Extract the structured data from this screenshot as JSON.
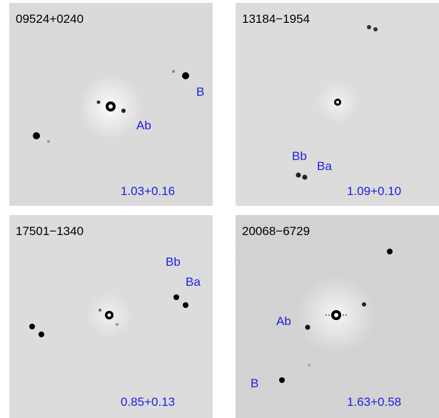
{
  "panels": [
    {
      "title": "09524+0240",
      "labels": [
        "B",
        "Ab"
      ],
      "value": "1.03+0.16"
    },
    {
      "title": "13184−1954",
      "labels": [
        "Bb",
        "Ba"
      ],
      "value": "1.09+0.10"
    },
    {
      "title": "17501−1340",
      "labels": [
        "Bb",
        "Ba"
      ],
      "value": "0.85+0.13"
    },
    {
      "title": "20068−6729",
      "labels": [
        "Ab",
        "B"
      ],
      "value": "1.63+0.58"
    }
  ],
  "colors": {
    "label": "#1f1fe0",
    "title": "#000000",
    "background_light": "#d9d9d9",
    "background_noisy": "#c9c9c9"
  }
}
